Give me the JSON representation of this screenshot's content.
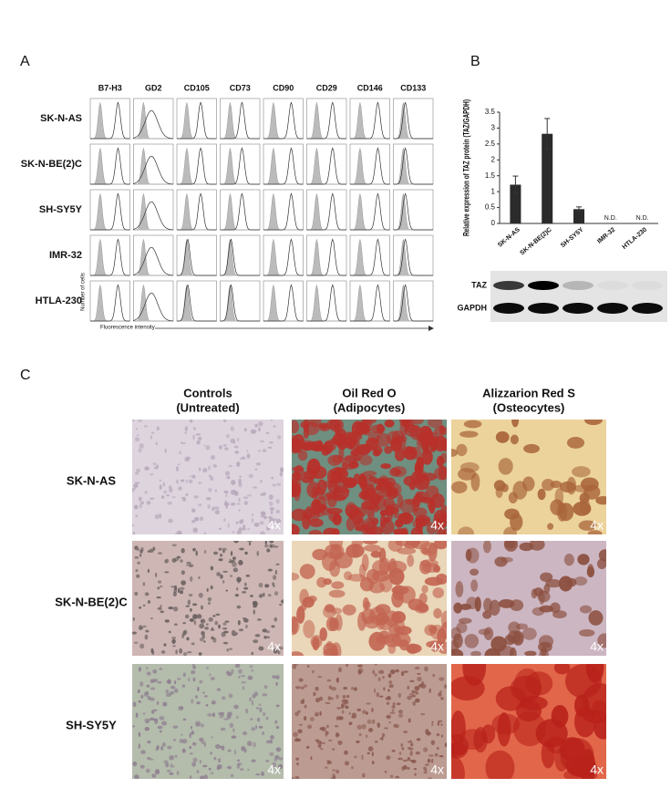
{
  "panel_a": {
    "label": "A",
    "columns": [
      "B7-H3",
      "GD2",
      "CD105",
      "CD73",
      "CD90",
      "CD29",
      "CD146",
      "CD133"
    ],
    "rows": [
      "SK-N-AS",
      "SK-N-BE(2)C",
      "SH-SY5Y",
      "IMR-32",
      "HTLA-230"
    ],
    "y_axis_label": "Number of cells",
    "x_axis_label": "Fluorescence intensity"
  },
  "panel_b": {
    "label": "B",
    "chart_data": {
      "type": "bar",
      "y_axis_label": "Relative expression of TAZ protein (TAZ/GAPDH)",
      "categories": [
        "SK-N-AS",
        "SK-N-BE(2)C",
        "SH-SY5Y",
        "IMR-32",
        "HTLA-230"
      ],
      "values": [
        1.22,
        2.82,
        0.45,
        null,
        null
      ],
      "errors": [
        0.27,
        0.48,
        0.07,
        null,
        null
      ],
      "value_labels": [
        null,
        null,
        null,
        "N.D.",
        "N.D."
      ],
      "color": "#2b2b2b",
      "ylim": [
        0,
        3.5
      ],
      "yticks": [
        0,
        0.5,
        1,
        1.5,
        2,
        2.5,
        3,
        3.5
      ]
    },
    "blot": {
      "rows": [
        "TAZ",
        "GAPDH"
      ]
    }
  },
  "panel_c": {
    "label": "C",
    "columns": [
      {
        "name": "Controls",
        "note": "(Untreated)"
      },
      {
        "name": "Oil Red O",
        "note": "(Adipocytes)"
      },
      {
        "name": "Alizzarion Red S",
        "note": "(Osteocytes)"
      }
    ],
    "rows": [
      "SK-N-AS",
      "SK-N-BE(2)C",
      "SH-SY5Y"
    ],
    "magnifications": [
      [
        "4x",
        "4x",
        "4x"
      ],
      [
        "4x",
        "4x",
        "4x"
      ],
      [
        "4x",
        "4x",
        "4x"
      ]
    ]
  }
}
